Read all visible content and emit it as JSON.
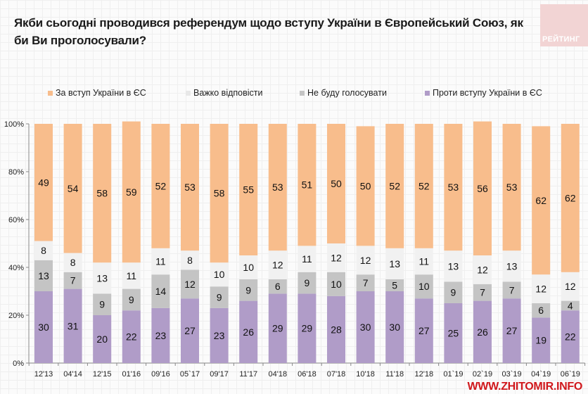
{
  "header": {
    "title": "Якби сьогодні проводився референдум щодо вступу України в Європейський Союз, як би Ви проголосували?",
    "logo_text": "РЕЙТИНГ"
  },
  "watermark": "WWW.ZHITOMIR.INFO",
  "colors": {
    "for": "#f8bd8c",
    "hard_to_say": "#f1f1f1",
    "wont_vote": "#c4c4c4",
    "against": "#b09cc8",
    "axis": "#888888",
    "watermark": "#d0181c"
  },
  "chart_data": {
    "type": "bar",
    "stacked": true,
    "title": "Якби сьогодні проводився референдум щодо вступу України в Європейський Союз, як би Ви проголосували?",
    "xlabel": "",
    "ylabel": "",
    "ylim": [
      0,
      100
    ],
    "yticks": [
      "0%",
      "20%",
      "40%",
      "60%",
      "80%",
      "100%"
    ],
    "legend_position": "top",
    "categories": [
      "12'13",
      "04'14",
      "12'15",
      "01'16",
      "09'16",
      "05`17",
      "09'17",
      "11'17",
      "04'18",
      "06'18",
      "07'18",
      "10'18",
      "11'18",
      "12'18",
      "01`19",
      "02`19",
      "03`19",
      "04`19",
      "06`19"
    ],
    "series": [
      {
        "name": "Проти вступу України в ЄС",
        "key": "against",
        "values": [
          30,
          31,
          20,
          22,
          23,
          27,
          23,
          26,
          29,
          29,
          28,
          30,
          30,
          27,
          25,
          26,
          27,
          19,
          22
        ]
      },
      {
        "name": "Не буду голосувати",
        "key": "wont_vote",
        "values": [
          13,
          7,
          9,
          9,
          14,
          12,
          9,
          9,
          6,
          9,
          10,
          7,
          5,
          10,
          9,
          7,
          7,
          6,
          4
        ]
      },
      {
        "name": "Важко відповісти",
        "key": "hard_to_say",
        "values": [
          8,
          8,
          13,
          11,
          11,
          8,
          10,
          10,
          12,
          11,
          12,
          12,
          13,
          11,
          13,
          12,
          13,
          12,
          12
        ]
      },
      {
        "name": "За вступ України в ЄС",
        "key": "for",
        "values": [
          49,
          54,
          58,
          59,
          52,
          53,
          58,
          55,
          53,
          51,
          50,
          50,
          52,
          52,
          53,
          56,
          53,
          62,
          62
        ]
      }
    ],
    "legend": [
      {
        "label": "За вступ України в ЄС",
        "key": "for"
      },
      {
        "label": "Важко відповісти",
        "key": "hard_to_say"
      },
      {
        "label": "Не буду голосувати",
        "key": "wont_vote"
      },
      {
        "label": "Проти вступу України в ЄС",
        "key": "against"
      }
    ]
  }
}
